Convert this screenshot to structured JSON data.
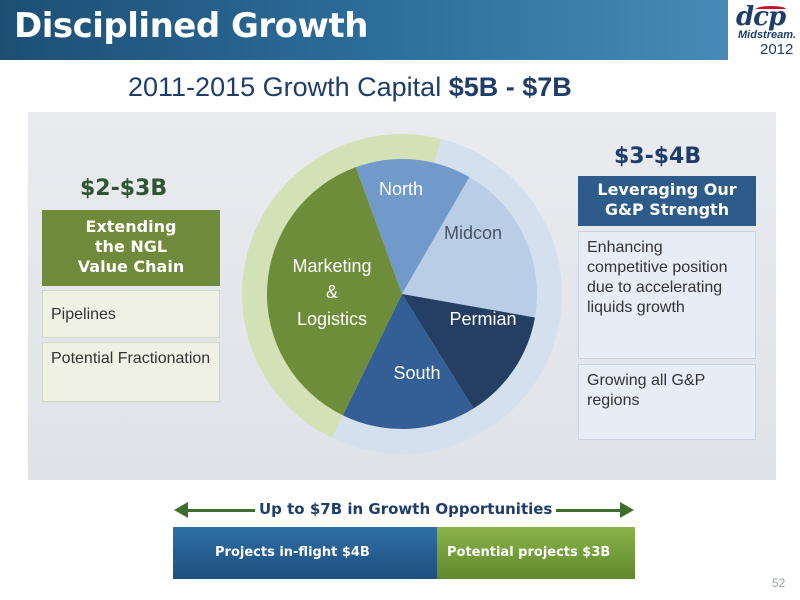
{
  "header": {
    "title": "Disciplined Growth"
  },
  "logo": {
    "mark": "dcp",
    "sub": "Midstream.",
    "year": "2012"
  },
  "headline": {
    "text": "2011-2015 Growth Capital",
    "amount": "$5B - $7B"
  },
  "left": {
    "amount": "$2-$3B",
    "header_lines": [
      "Extending",
      "the NGL",
      "Value Chain"
    ],
    "items": [
      "Pipelines",
      "Potential Fractionation"
    ]
  },
  "right": {
    "amount": "$3-$4B",
    "header_lines": [
      "Leveraging Our",
      "G&P Strength"
    ],
    "items": [
      "Enhancing competitive position due to accelerating liquids growth",
      "Growing all G&P regions"
    ]
  },
  "pie": {
    "labels": {
      "north": "North",
      "midcon": "Midcon",
      "permian": "Permian",
      "south": "South",
      "marketing": [
        "Marketing",
        "&",
        "Logistics"
      ]
    },
    "colors": {
      "north": "#7199c9",
      "midcon": "#b9cde6",
      "permian": "#253e63",
      "south": "#335f96",
      "marketing": "#6e8d3a",
      "ring_left": "#d3e1b6",
      "ring_right": "#d5e0ee"
    }
  },
  "opportunities": {
    "label": "Up to $7B in Growth Opportunities",
    "inflight": "Projects in-flight $4B",
    "potential": "Potential projects $3B"
  },
  "page_number": "52"
}
